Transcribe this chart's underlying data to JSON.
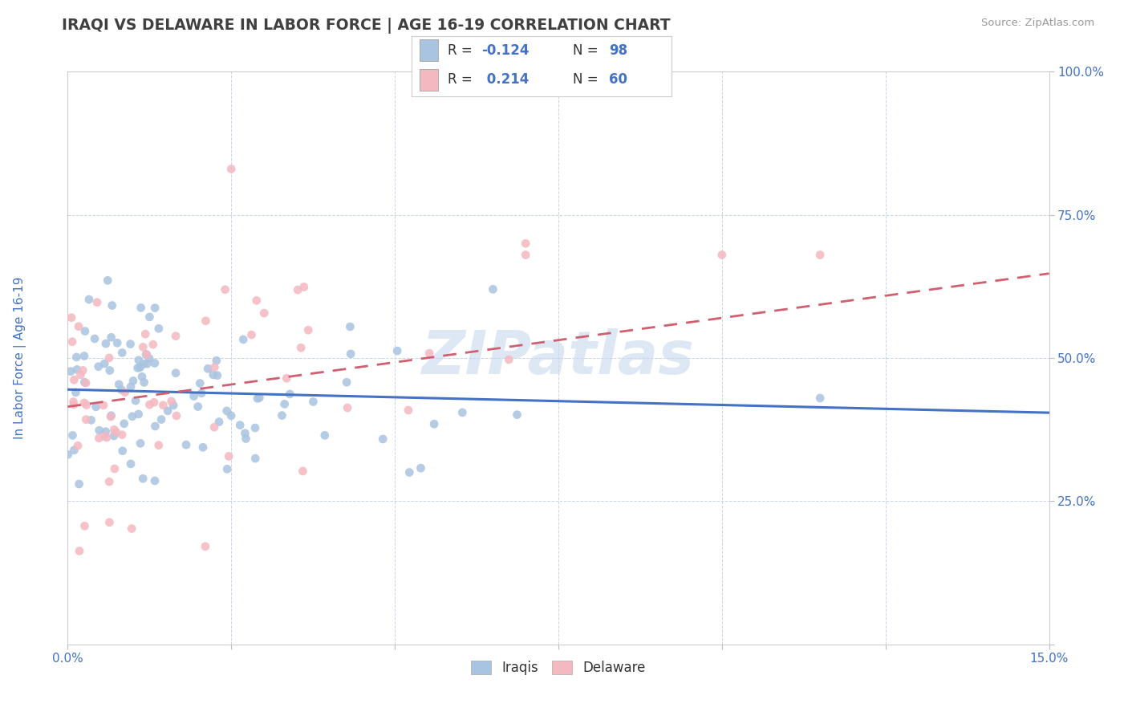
{
  "title": "IRAQI VS DELAWARE IN LABOR FORCE | AGE 16-19 CORRELATION CHART",
  "source": "Source: ZipAtlas.com",
  "ylabel": "In Labor Force | Age 16-19",
  "xlim": [
    0.0,
    0.15
  ],
  "ylim": [
    0.0,
    1.0
  ],
  "xticks": [
    0.0,
    0.025,
    0.05,
    0.075,
    0.1,
    0.125,
    0.15
  ],
  "yticks": [
    0.0,
    0.25,
    0.5,
    0.75,
    1.0
  ],
  "iraqis_color": "#a8c4e0",
  "delaware_color": "#f4b8c1",
  "iraqis_line_color": "#4472c4",
  "delaware_line_color": "#d06070",
  "watermark": "ZIPatlas",
  "watermark_color": "#c8d8ee",
  "iraqis_r": -0.124,
  "iraqis_n": 98,
  "delaware_r": 0.214,
  "delaware_n": 60,
  "iraqis_intercept": 0.445,
  "iraqis_slope": -0.27,
  "delaware_intercept": 0.415,
  "delaware_slope": 1.55,
  "background_color": "#ffffff",
  "grid_color": "#c8d4e8",
  "title_color": "#404040",
  "axis_label_color": "#4472c4",
  "tick_label_color": "#4472c4"
}
